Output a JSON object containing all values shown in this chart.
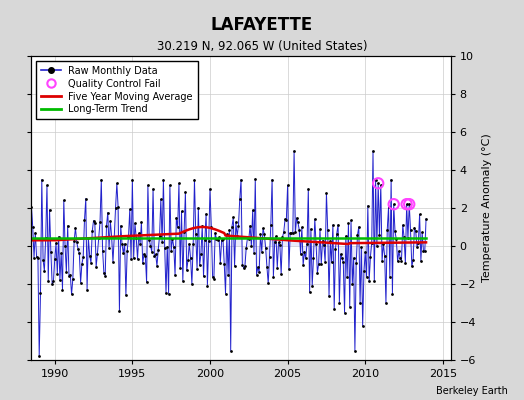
{
  "title": "LAFAYETTE",
  "subtitle": "30.219 N, 92.065 W (United States)",
  "ylabel": "Temperature Anomaly (°C)",
  "attribution": "Berkeley Earth",
  "xlim": [
    1988.5,
    2015.5
  ],
  "ylim": [
    -6,
    10
  ],
  "yticks": [
    -6,
    -4,
    -2,
    0,
    2,
    4,
    6,
    8,
    10
  ],
  "xticks": [
    1990,
    1995,
    2000,
    2005,
    2010,
    2015
  ],
  "bg_color": "#d8d8d8",
  "plot_bg_color": "#ffffff",
  "raw_color": "#2222cc",
  "raw_fill_color": "#aaaaee",
  "dot_color": "#000000",
  "moving_avg_color": "#dd0000",
  "trend_color": "#00bb00",
  "qc_fail_color": "#ff44ff",
  "legend_items": [
    "Raw Monthly Data",
    "Quality Control Fail",
    "Five Year Moving Average",
    "Long-Term Trend"
  ],
  "seed": 42,
  "n_months": 312,
  "start_year": 1988.0
}
